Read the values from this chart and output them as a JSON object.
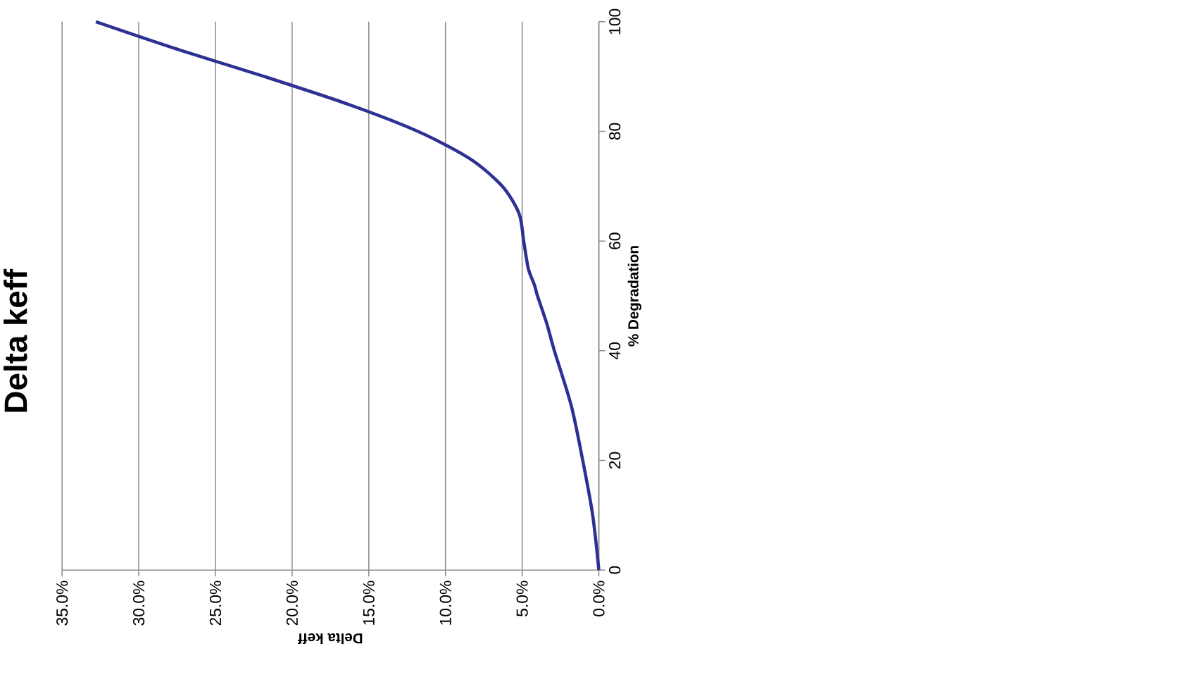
{
  "chart_data": {
    "type": "line",
    "title": "Delta keff",
    "xlabel": "Delta keff",
    "ylabel": "% Degradation",
    "x": [
      0,
      0.4,
      1.05,
      1.8,
      2.9,
      3.4,
      4.0,
      4.2,
      4.6,
      4.9,
      5.2,
      6.3,
      8.4,
      11.8,
      16.4,
      21.8,
      27.5,
      32.8
    ],
    "series": [
      {
        "color": "#2e3192",
        "values": [
          0,
          10,
          20,
          30,
          40,
          45,
          50,
          52,
          55,
          60,
          65,
          70,
          75,
          80,
          85,
          90,
          95,
          100
        ]
      }
    ],
    "xlim": [
      35,
      0
    ],
    "xticks": [
      {
        "value": 0,
        "label": "0.0%"
      },
      {
        "value": 5,
        "label": "5.0%"
      },
      {
        "value": 10,
        "label": "10.0%"
      },
      {
        "value": 15,
        "label": "15.0%"
      },
      {
        "value": 20,
        "label": "20.0%"
      },
      {
        "value": 25,
        "label": "25.0%"
      },
      {
        "value": 30,
        "label": "30.0%"
      },
      {
        "value": 35,
        "label": "35.0%"
      }
    ],
    "ylim": [
      0,
      100
    ],
    "yticks": [
      0,
      20,
      40,
      60,
      80,
      100
    ],
    "grid": "x",
    "marker": "none",
    "line_style": "solid"
  }
}
